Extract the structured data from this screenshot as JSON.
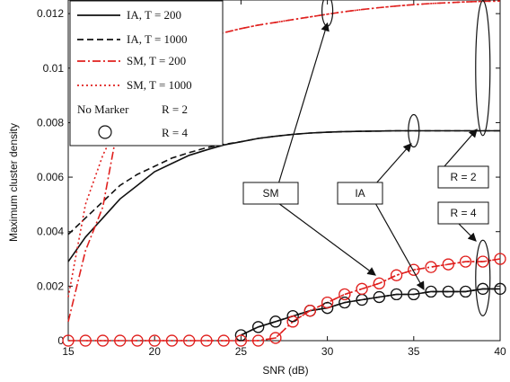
{
  "chart_data": {
    "type": "line",
    "xlabel": "SNR (dB)",
    "ylabel": "Maximum cluster density",
    "xlim": [
      15,
      40
    ],
    "ylim": [
      0,
      0.0125
    ],
    "x_ticks": [
      15,
      20,
      25,
      30,
      35,
      40
    ],
    "y_ticks": [
      0,
      0.002,
      0.004,
      0.006,
      0.008,
      0.01,
      0.012
    ],
    "y_tick_labels": [
      "0",
      "0.002",
      "0.004",
      "0.006",
      "0.008",
      "0.01",
      "0.012"
    ],
    "grid": false,
    "legend_position": "top-left",
    "legend": {
      "entries": [
        "IA, T = 200",
        "IA, T = 1000",
        "SM, T = 200",
        "SM, T = 1000"
      ],
      "marker_notes": [
        {
          "marker": "No Marker",
          "label": "R = 2"
        },
        {
          "marker": "",
          "label": "R = 4"
        }
      ]
    },
    "series": [
      {
        "name": "IA, T = 200",
        "family": "IA",
        "R": 2,
        "style": "solid",
        "color": "#111111",
        "x": [
          15,
          16,
          17,
          18,
          19,
          20,
          21,
          22,
          23,
          24,
          25,
          26,
          27,
          28,
          29,
          30,
          31,
          32,
          33,
          34,
          35,
          36,
          37,
          38,
          39,
          40
        ],
        "y": [
          0.0029,
          0.0038,
          0.0045,
          0.0052,
          0.0057,
          0.0062,
          0.0065,
          0.0068,
          0.007,
          0.00718,
          0.0073,
          0.00742,
          0.0075,
          0.00757,
          0.00762,
          0.00765,
          0.00767,
          0.00768,
          0.00769,
          0.0077,
          0.0077,
          0.0077,
          0.0077,
          0.0077,
          0.0077,
          0.0077
        ]
      },
      {
        "name": "IA, T = 1000",
        "family": "IA",
        "R": 2,
        "style": "dashed",
        "color": "#111111",
        "x": [
          15,
          16,
          17,
          18,
          19,
          20,
          21,
          22,
          23,
          24,
          25,
          26,
          27,
          28,
          29,
          30,
          31,
          32,
          33,
          34,
          35,
          36,
          37,
          38,
          39,
          40
        ],
        "y": [
          0.0039,
          0.0045,
          0.0051,
          0.0057,
          0.0061,
          0.0064,
          0.0067,
          0.0069,
          0.00708,
          0.0072,
          0.0073,
          0.00742,
          0.0075,
          0.00757,
          0.00762,
          0.00765,
          0.00767,
          0.00768,
          0.00769,
          0.0077,
          0.0077,
          0.0077,
          0.0077,
          0.0077,
          0.0077,
          0.0077
        ]
      },
      {
        "name": "SM, T = 200",
        "family": "SM",
        "R": 2,
        "style": "dashdot",
        "color": "#e0201e",
        "x": [
          15,
          16,
          17,
          18,
          19,
          20,
          21,
          22,
          23,
          24,
          25,
          26,
          27,
          28,
          29,
          30,
          31,
          32,
          33,
          34,
          35,
          36,
          37,
          38,
          39,
          40
        ],
        "y": [
          0.0007,
          0.0033,
          0.0049,
          0.0083,
          0.0092,
          0.0099,
          0.0104,
          0.0108,
          0.0111,
          0.0113,
          0.01145,
          0.01158,
          0.01168,
          0.01178,
          0.01188,
          0.01198,
          0.01207,
          0.01215,
          0.01222,
          0.01228,
          0.01233,
          0.01237,
          0.0124,
          0.01243,
          0.01245,
          0.01246
        ]
      },
      {
        "name": "SM, T = 1000",
        "family": "SM",
        "R": 2,
        "style": "dotted",
        "color": "#e0201e",
        "x": [
          15,
          16,
          17,
          18,
          19,
          20,
          21,
          22,
          23,
          24,
          25,
          26,
          27,
          28,
          29,
          30,
          31,
          32,
          33,
          34,
          35,
          36,
          37,
          38,
          39,
          40
        ],
        "y": [
          0.0016,
          0.005,
          0.0068,
          0.0081,
          0.0092,
          0.0099,
          0.0104,
          0.0108,
          0.0111,
          0.0113,
          0.01145,
          0.01158,
          0.01168,
          0.01178,
          0.01188,
          0.01198,
          0.01207,
          0.01215,
          0.01222,
          0.01228,
          0.01233,
          0.01237,
          0.0124,
          0.01243,
          0.01245,
          0.01246
        ]
      },
      {
        "name": "IA, T = 200",
        "family": "IA",
        "R": 4,
        "style": "solid",
        "color": "#111111",
        "marker": "circle",
        "x": [
          25,
          26,
          27,
          28,
          29,
          30,
          31,
          32,
          33,
          34,
          35,
          36,
          37,
          38,
          39,
          40
        ],
        "y": [
          0.0002,
          0.0005,
          0.0007,
          0.0009,
          0.0011,
          0.0012,
          0.0014,
          0.0015,
          0.0016,
          0.0017,
          0.0017,
          0.0018,
          0.0018,
          0.0018,
          0.0019,
          0.0019
        ]
      },
      {
        "name": "IA, T = 1000",
        "family": "IA",
        "R": 4,
        "style": "dashed",
        "color": "#111111",
        "marker": "circle",
        "x": [
          25,
          26,
          27,
          28,
          29,
          30,
          31,
          32,
          33,
          34,
          35,
          36,
          37,
          38,
          39,
          40
        ],
        "y": [
          0.0002,
          0.0005,
          0.0007,
          0.0009,
          0.0011,
          0.0012,
          0.0014,
          0.0015,
          0.0016,
          0.0017,
          0.0017,
          0.0018,
          0.0018,
          0.0018,
          0.0019,
          0.0019
        ]
      },
      {
        "name": "SM, T = 200",
        "family": "SM",
        "R": 4,
        "style": "dashdot",
        "color": "#e0201e",
        "marker": "circle",
        "x": [
          15,
          16,
          17,
          18,
          19,
          20,
          21,
          22,
          23,
          24,
          25,
          26,
          27,
          28,
          29,
          30,
          31,
          32,
          33,
          34,
          35,
          36,
          37,
          38,
          39,
          40
        ],
        "y": [
          0,
          0,
          0,
          0,
          0,
          0,
          0,
          0,
          0,
          0,
          0,
          0,
          0.0001,
          0.0007,
          0.0011,
          0.0014,
          0.0017,
          0.0019,
          0.0021,
          0.0024,
          0.0026,
          0.0027,
          0.0028,
          0.0029,
          0.0029,
          0.003
        ]
      },
      {
        "name": "SM, T = 1000",
        "family": "SM",
        "R": 4,
        "style": "dotted",
        "color": "#e0201e",
        "marker": "circle",
        "x": [
          15,
          16,
          17,
          18,
          19,
          20,
          21,
          22,
          23,
          24,
          25,
          26,
          27,
          28,
          29,
          30,
          31,
          32,
          33,
          34,
          35,
          36,
          37,
          38,
          39,
          40
        ],
        "y": [
          0,
          0,
          0,
          0,
          0,
          0,
          0,
          0,
          0,
          0,
          0,
          0,
          0.0001,
          0.0007,
          0.0011,
          0.0014,
          0.0017,
          0.0019,
          0.0021,
          0.0024,
          0.0026,
          0.0027,
          0.0028,
          0.0029,
          0.0029,
          0.003
        ]
      }
    ],
    "annotations": [
      {
        "label": "SM",
        "ellipse_center": [
          30,
          0.0121
        ],
        "arrows_to": [
          [
            30,
            0.0121
          ],
          [
            34.5,
            0.0025
          ]
        ]
      },
      {
        "label": "IA",
        "ellipse_center": [
          35,
          0.0077
        ],
        "arrows_to": [
          [
            35,
            0.0077
          ],
          [
            37.2,
            0.0019
          ]
        ]
      },
      {
        "label": "R = 2",
        "ellipse_center": [
          39,
          0.01
        ],
        "arrows_to": [
          [
            38.5,
            0.008
          ]
        ]
      },
      {
        "label": "R = 4",
        "ellipse_center": [
          39,
          0.0023
        ],
        "arrows_to": [
          [
            38.8,
            0.0035
          ]
        ]
      }
    ]
  }
}
